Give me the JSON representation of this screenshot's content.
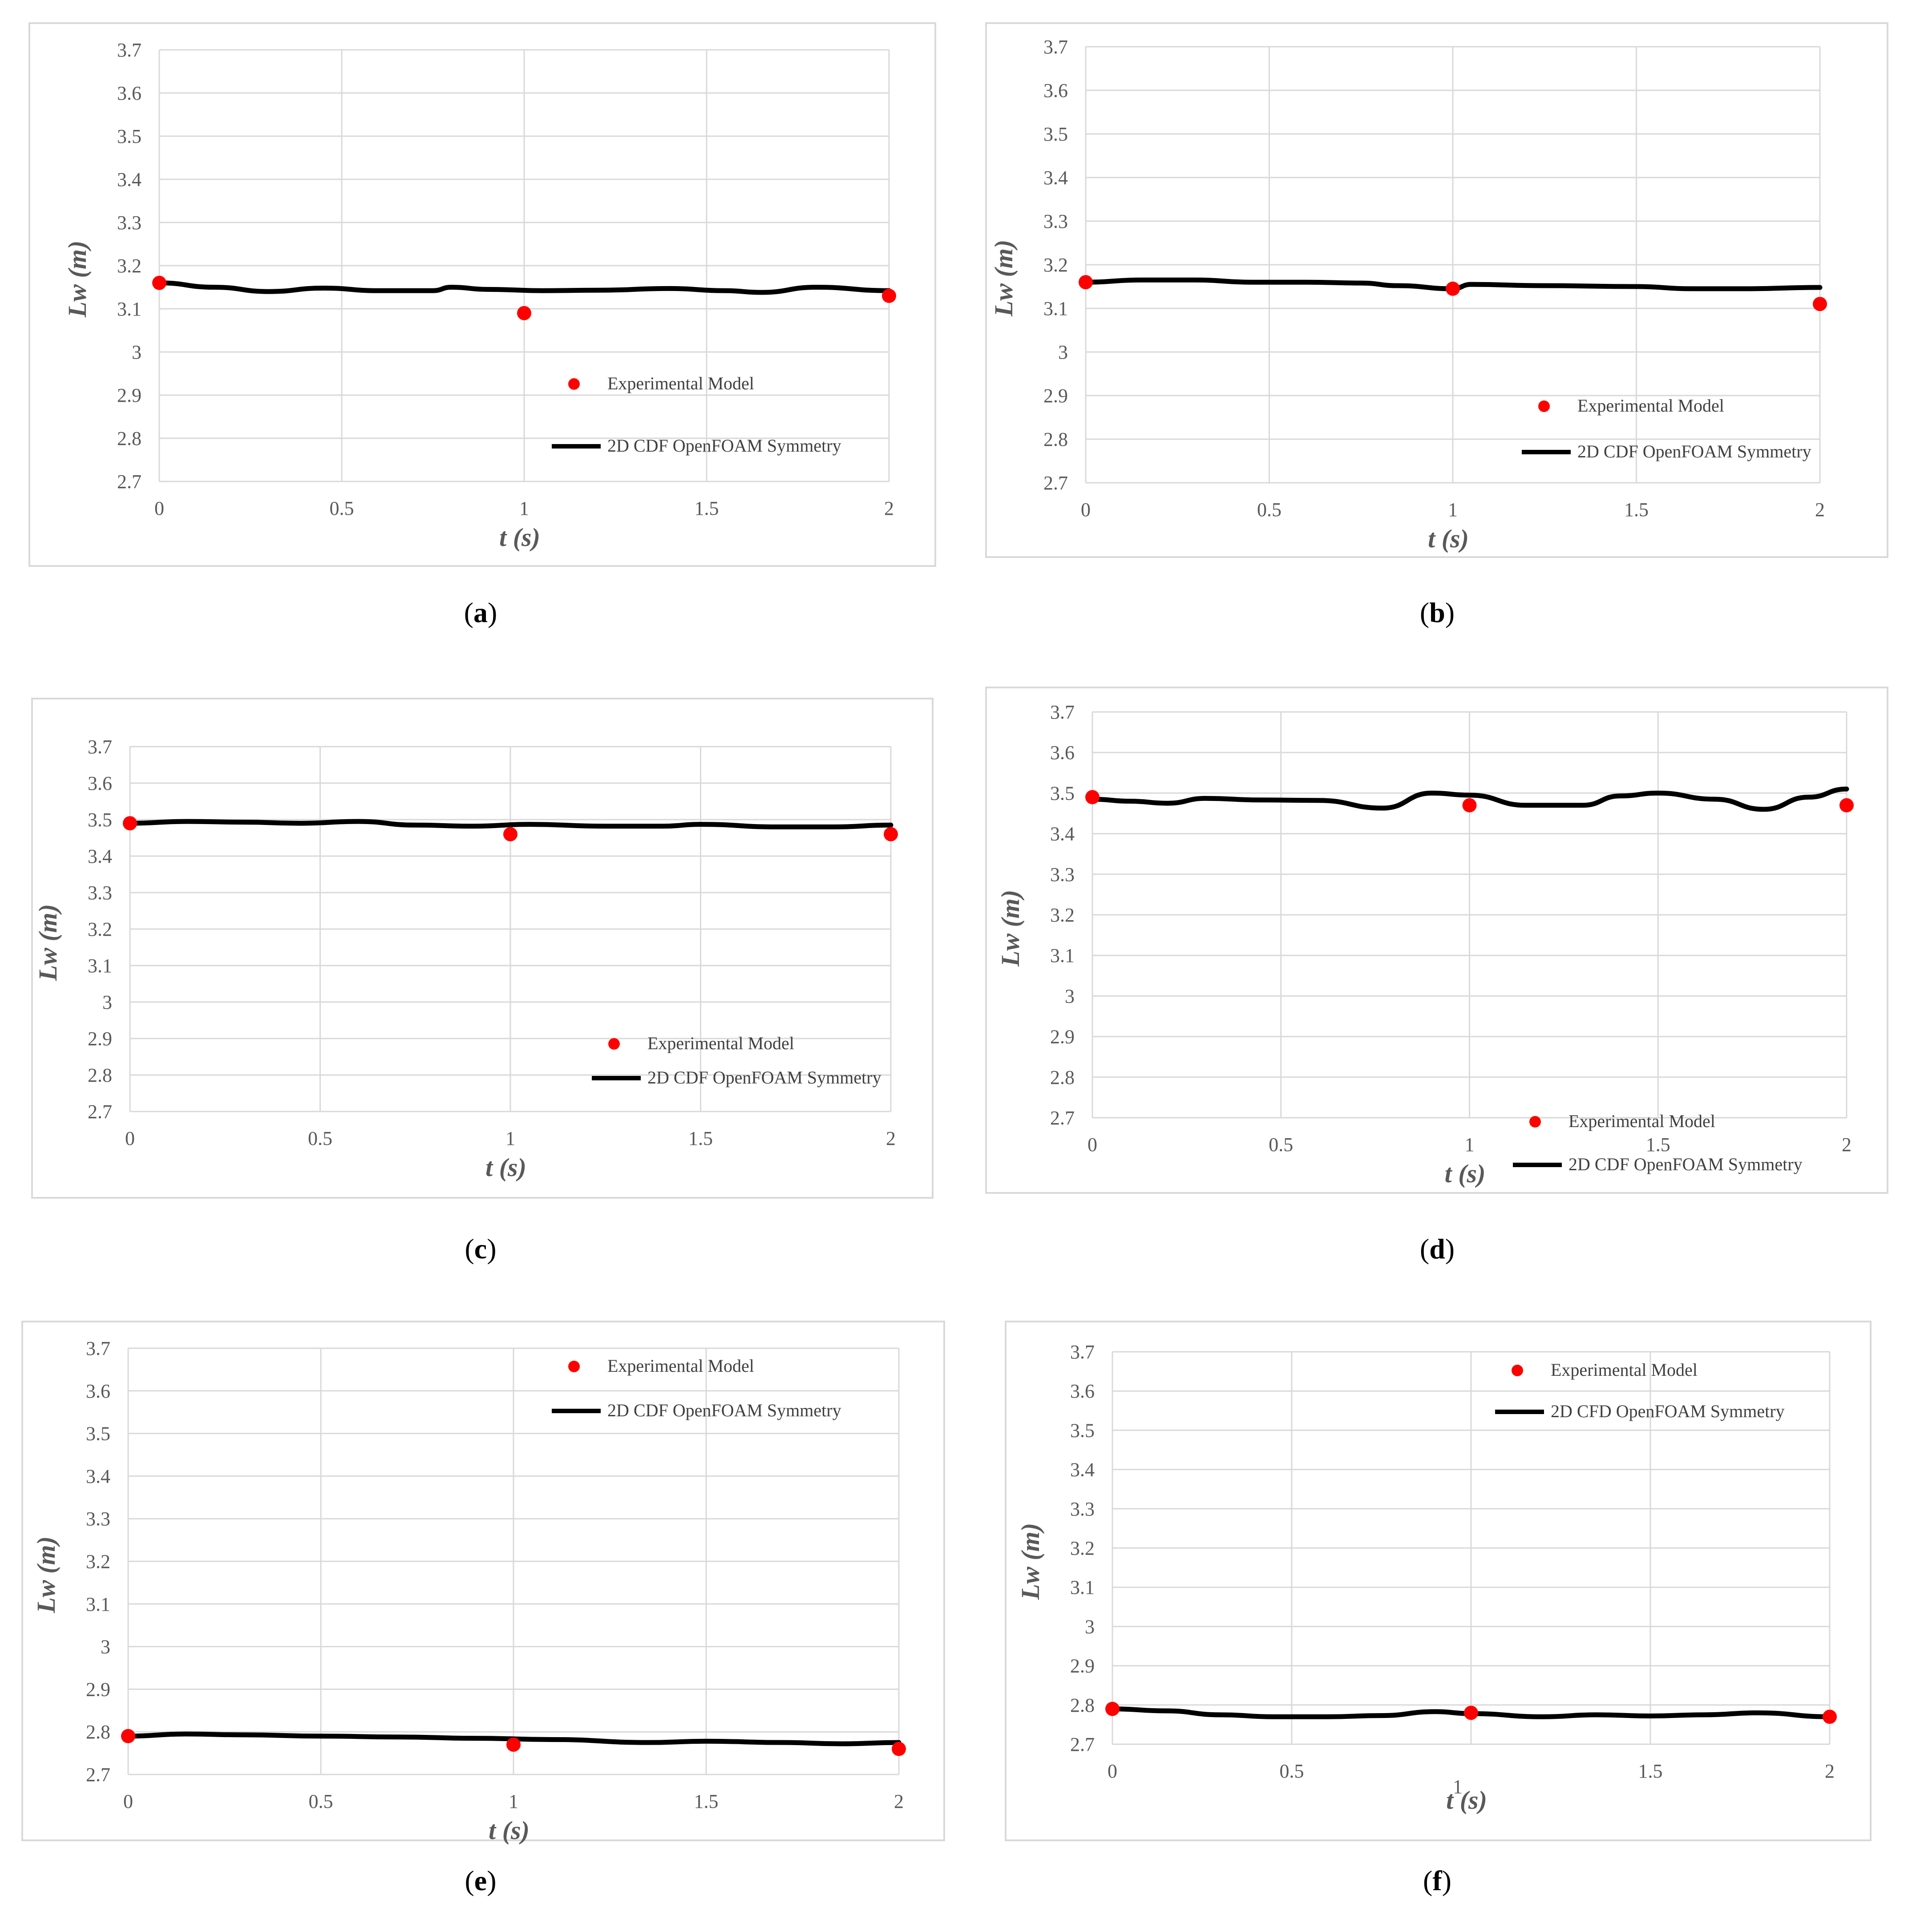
{
  "colors": {
    "grid": "#d9d9d9",
    "experimental": "#ff0000",
    "simulation": "#000000",
    "tick": "#595959"
  },
  "chart_data": [
    {
      "panel": "a",
      "caption_letter": "a",
      "type": "line",
      "xlabel": "t (s)",
      "ylabel": "Lw (m)",
      "xlim": [
        0,
        2
      ],
      "ylim": [
        2.7,
        3.7
      ],
      "x_ticks": [
        "0",
        "0.5",
        "1",
        "1.5",
        "2"
      ],
      "y_ticks": [
        "2.7",
        "2.8",
        "2.9",
        "3",
        "3.1",
        "3.2",
        "3.3",
        "3.4",
        "3.5",
        "3.6",
        "3.7"
      ],
      "legend_position": "bottom-right",
      "series": [
        {
          "name": "Experimental Model",
          "kind": "scatter",
          "x": [
            0,
            1,
            2
          ],
          "y": [
            3.16,
            3.09,
            3.13
          ]
        },
        {
          "name": "2D CDF OpenFOAM Symmetry",
          "kind": "line",
          "x": [
            0,
            0.15,
            0.3,
            0.45,
            0.6,
            0.75,
            0.8,
            0.9,
            1.05,
            1.2,
            1.4,
            1.55,
            1.65,
            1.8,
            2.0
          ],
          "y": [
            3.16,
            3.15,
            3.14,
            3.148,
            3.142,
            3.142,
            3.15,
            3.145,
            3.142,
            3.143,
            3.147,
            3.142,
            3.138,
            3.15,
            3.142
          ]
        }
      ]
    },
    {
      "panel": "b",
      "caption_letter": "b",
      "type": "line",
      "xlabel": "t (s)",
      "ylabel": "Lw (m)",
      "xlim": [
        0,
        2
      ],
      "ylim": [
        2.7,
        3.7
      ],
      "x_ticks": [
        "0",
        "0.5",
        "1",
        "1.5",
        "2"
      ],
      "y_ticks": [
        "2.7",
        "2.8",
        "2.9",
        "3",
        "3.1",
        "3.2",
        "3.3",
        "3.4",
        "3.5",
        "3.6",
        "3.7"
      ],
      "legend_position": "bottom-right",
      "series": [
        {
          "name": "Experimental Model",
          "kind": "scatter",
          "x": [
            0,
            1,
            2
          ],
          "y": [
            3.16,
            3.145,
            3.11
          ]
        },
        {
          "name": "2D CDF OpenFOAM Symmetry",
          "kind": "line",
          "x": [
            0,
            0.15,
            0.3,
            0.45,
            0.6,
            0.75,
            0.85,
            1.0,
            1.05,
            1.25,
            1.5,
            1.65,
            1.8,
            2.0
          ],
          "y": [
            3.16,
            3.165,
            3.165,
            3.16,
            3.16,
            3.158,
            3.152,
            3.145,
            3.155,
            3.152,
            3.15,
            3.145,
            3.145,
            3.148
          ]
        }
      ]
    },
    {
      "panel": "c",
      "caption_letter": "c",
      "type": "line",
      "xlabel": "t (s)",
      "ylabel": "Lw (m)",
      "xlim": [
        0,
        2
      ],
      "ylim": [
        2.7,
        3.7
      ],
      "x_ticks": [
        "0",
        "0.5",
        "1",
        "1.5",
        "2"
      ],
      "y_ticks": [
        "2.7",
        "2.8",
        "2.9",
        "3",
        "3.1",
        "3.2",
        "3.3",
        "3.4",
        "3.5",
        "3.6",
        "3.7"
      ],
      "legend_position": "bottom-right",
      "series": [
        {
          "name": "Experimental Model",
          "kind": "scatter",
          "x": [
            0,
            1,
            2
          ],
          "y": [
            3.49,
            3.46,
            3.46
          ]
        },
        {
          "name": "2D CDF OpenFOAM Symmetry",
          "kind": "line",
          "x": [
            0,
            0.15,
            0.3,
            0.45,
            0.6,
            0.75,
            0.9,
            1.05,
            1.25,
            1.4,
            1.5,
            1.7,
            1.85,
            2.0
          ],
          "y": [
            3.49,
            3.495,
            3.493,
            3.49,
            3.495,
            3.485,
            3.482,
            3.487,
            3.482,
            3.482,
            3.487,
            3.48,
            3.48,
            3.485
          ]
        }
      ]
    },
    {
      "panel": "d",
      "caption_letter": "d",
      "type": "line",
      "xlabel": "t (s)",
      "ylabel": "Lw (m)",
      "xlim": [
        0,
        2
      ],
      "ylim": [
        2.7,
        3.7
      ],
      "x_ticks": [
        "0",
        "0.5",
        "1",
        "1.5",
        "2"
      ],
      "y_ticks": [
        "2.7",
        "2.8",
        "2.9",
        "3",
        "3.1",
        "3.2",
        "3.3",
        "3.4",
        "3.5",
        "3.6",
        "3.7"
      ],
      "legend_position": "bottom-right",
      "series": [
        {
          "name": "Experimental Model",
          "kind": "scatter",
          "x": [
            0,
            1,
            2
          ],
          "y": [
            3.49,
            3.47,
            3.47
          ]
        },
        {
          "name": "2D CDF OpenFOAM Symmetry",
          "kind": "line",
          "x": [
            0,
            0.1,
            0.2,
            0.3,
            0.45,
            0.6,
            0.77,
            0.9,
            1.0,
            1.15,
            1.3,
            1.4,
            1.5,
            1.65,
            1.78,
            1.9,
            2.0
          ],
          "y": [
            3.485,
            3.48,
            3.475,
            3.487,
            3.483,
            3.482,
            3.463,
            3.5,
            3.495,
            3.47,
            3.47,
            3.493,
            3.5,
            3.485,
            3.46,
            3.49,
            3.51
          ]
        }
      ]
    },
    {
      "panel": "e",
      "caption_letter": "e",
      "type": "line",
      "xlabel": "t (s)",
      "ylabel": "Lw (m)",
      "xlim": [
        0,
        2
      ],
      "ylim": [
        2.7,
        3.7
      ],
      "x_ticks": [
        "0",
        "0.5",
        "1",
        "1.5",
        "2"
      ],
      "y_ticks": [
        "2.7",
        "2.8",
        "2.9",
        "3",
        "3.1",
        "3.2",
        "3.3",
        "3.4",
        "3.5",
        "3.6",
        "3.7"
      ],
      "legend_position": "top-right",
      "series": [
        {
          "name": "Experimental Model",
          "kind": "scatter",
          "x": [
            0,
            1,
            2
          ],
          "y": [
            2.79,
            2.77,
            2.76
          ]
        },
        {
          "name": "2D CDF OpenFOAM Symmetry",
          "kind": "line",
          "x": [
            0,
            0.15,
            0.3,
            0.5,
            0.7,
            0.9,
            1.1,
            1.35,
            1.5,
            1.7,
            1.85,
            2.0
          ],
          "y": [
            2.79,
            2.795,
            2.793,
            2.79,
            2.788,
            2.785,
            2.782,
            2.775,
            2.778,
            2.775,
            2.772,
            2.775
          ]
        }
      ]
    },
    {
      "panel": "f",
      "caption_letter": "f",
      "type": "line",
      "xlabel": "t (s)",
      "xlabel_extra": "1",
      "ylabel": "Lw (m)",
      "xlim": [
        0,
        2
      ],
      "ylim": [
        2.7,
        3.7
      ],
      "x_ticks": [
        "0",
        "0.5",
        "",
        "1.5",
        "2"
      ],
      "y_ticks": [
        "2.7",
        "2.8",
        "2.9",
        "3",
        "3.1",
        "3.2",
        "3.3",
        "3.4",
        "3.5",
        "3.6",
        "3.7"
      ],
      "legend_position": "top-right",
      "series": [
        {
          "name": "Experimental Model",
          "kind": "scatter",
          "x": [
            0,
            1,
            2
          ],
          "y": [
            2.79,
            2.78,
            2.77
          ]
        },
        {
          "name": "2D CFD OpenFOAM Symmetry",
          "kind": "line",
          "x": [
            0,
            0.15,
            0.3,
            0.45,
            0.6,
            0.75,
            0.9,
            1.0,
            1.2,
            1.35,
            1.5,
            1.65,
            1.8,
            2.0
          ],
          "y": [
            2.79,
            2.785,
            2.775,
            2.77,
            2.77,
            2.773,
            2.783,
            2.778,
            2.77,
            2.775,
            2.772,
            2.775,
            2.78,
            2.77
          ]
        }
      ]
    }
  ]
}
